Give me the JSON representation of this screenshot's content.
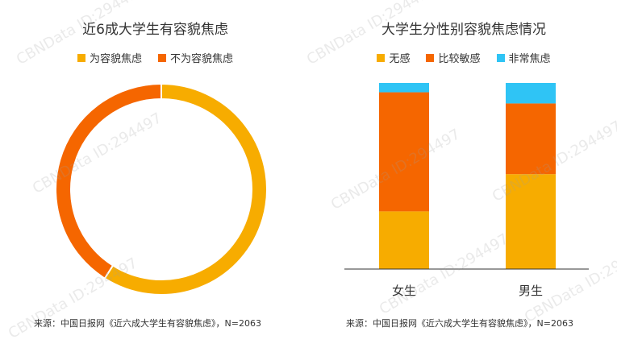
{
  "colors": {
    "yellow": "#F7AC00",
    "orange": "#F56600",
    "blue": "#2FC4F5",
    "axis": "#333333"
  },
  "watermark": "CBNData ID:294497",
  "chart_data": [
    {
      "type": "pie",
      "title": "近6成大学生有容貌焦虑",
      "labels": [
        "为容貌焦虑",
        "不为容貌焦虑"
      ],
      "values": [
        59,
        41
      ],
      "source": "来源：中国日报网《近六成大学生有容貌焦虑》，N=2063"
    },
    {
      "type": "bar",
      "stacked": true,
      "title": "大学生分性别容貌焦虑情况",
      "categories": [
        "女生",
        "男生"
      ],
      "series": [
        {
          "name": "无感",
          "values": [
            31,
            51
          ]
        },
        {
          "name": "比较敏感",
          "values": [
            64,
            38
          ]
        },
        {
          "name": "非常焦虑",
          "values": [
            5,
            11
          ]
        }
      ],
      "ylim": [
        0,
        100
      ],
      "source": "来源：中国日报网《近六成大学生有容貌焦虑》，N=2063"
    }
  ]
}
